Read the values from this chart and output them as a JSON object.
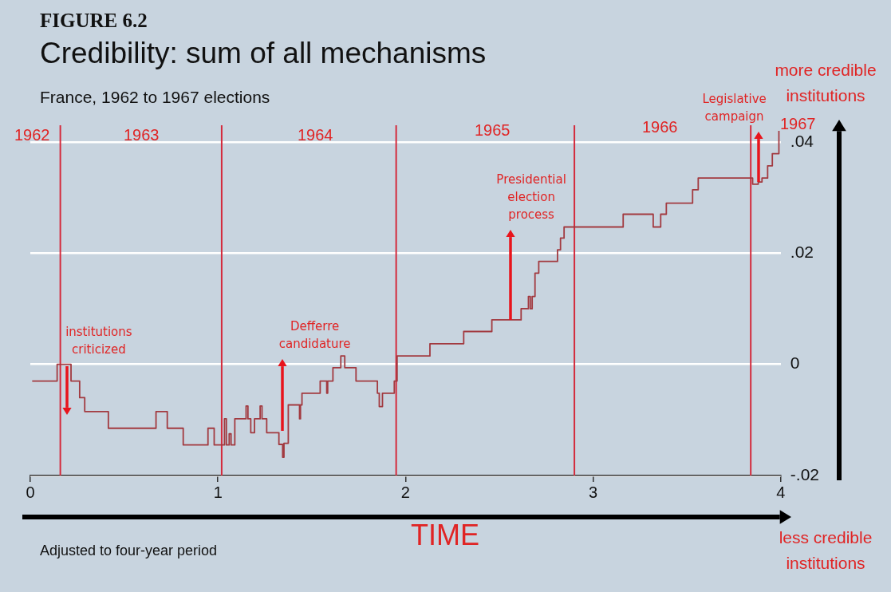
{
  "chart_data": {
    "type": "step",
    "title": "Credibility: sum of all mechanisms",
    "subtitle": "France, 1962 to 1967 elections",
    "xlabel": "TIME",
    "x": [
      0.01,
      0.143,
      0.217,
      0.263,
      0.29,
      0.416,
      0.67,
      0.73,
      0.815,
      0.947,
      0.98,
      1.035,
      1.045,
      1.06,
      1.07,
      1.09,
      1.15,
      1.16,
      1.175,
      1.195,
      1.225,
      1.235,
      1.26,
      1.325,
      1.345,
      1.352,
      1.375,
      1.435,
      1.44,
      1.448,
      1.545,
      1.58,
      1.585,
      1.613,
      1.655,
      1.676,
      1.736,
      1.85,
      1.86,
      1.877,
      1.94,
      1.955,
      2.13,
      2.31,
      2.46,
      2.616,
      2.655,
      2.665,
      2.675,
      2.69,
      2.71,
      2.81,
      2.826,
      2.845,
      3.16,
      3.32,
      3.36,
      3.39,
      3.53,
      3.56,
      3.85,
      3.88,
      3.9,
      3.93,
      3.955,
      3.99
    ],
    "series": [
      {
        "color": "#a23a40",
        "values": [
          -0.003,
          0,
          -0.003,
          -0.006,
          -0.0085,
          -0.0115,
          -0.0085,
          -0.0115,
          -0.0145,
          -0.0115,
          -0.0145,
          -0.0098,
          -0.0145,
          -0.0125,
          -0.0145,
          -0.0098,
          -0.0075,
          -0.0098,
          -0.0123,
          -0.0098,
          -0.0075,
          -0.0098,
          -0.0123,
          -0.0144,
          -0.0167,
          -0.0142,
          -0.0073,
          -0.0098,
          -0.0073,
          -0.0052,
          -0.003,
          -0.0052,
          -0.003,
          -0.0006,
          0.0015,
          -0.0006,
          -0.003,
          -0.0052,
          -0.0076,
          -0.0052,
          -0.003,
          0.0015,
          0.0037,
          0.0059,
          0.008,
          0.01,
          0.0122,
          0.01,
          0.0122,
          0.0164,
          0.0185,
          0.0206,
          0.0227,
          0.0247,
          0.027,
          0.0247,
          0.027,
          0.029,
          0.0314,
          0.0335,
          0.0324,
          0.0328,
          0.0335,
          0.0357,
          0.0379,
          0.042
        ]
      }
    ],
    "xlim": [
      0,
      4
    ],
    "xticks": [
      0,
      1,
      2,
      3,
      4
    ],
    "ylim": [
      -0.02,
      0.043
    ],
    "yticks": [
      {
        "value": -0.02,
        "label": "-.02"
      },
      {
        "value": 0,
        "label": "0"
      },
      {
        "value": 0.02,
        "label": ".02"
      },
      {
        "value": 0.04,
        "label": ".04"
      }
    ],
    "grid": "y",
    "legend": false,
    "ref_lines": [
      {
        "axis": "x",
        "value": 0.16,
        "color": "#d42a3c"
      },
      {
        "axis": "x",
        "value": 1.02,
        "color": "#d42a3c"
      },
      {
        "axis": "x",
        "value": 1.95,
        "color": "#d42a3c"
      },
      {
        "axis": "x",
        "value": 2.9,
        "color": "#d42a3c"
      },
      {
        "axis": "x",
        "value": 3.84,
        "color": "#d42a3c"
      }
    ],
    "annotations": [
      "FIGURE 6.2",
      "Adjusted to four-year period",
      "more credible institutions",
      "less credible institutions",
      "1962",
      "1963",
      "1964",
      "1965",
      "1966",
      "1967",
      {
        "text": "institutions criticized",
        "x": 0.195,
        "y": 0
      },
      {
        "text": "Defferre candidature",
        "x": 1.342,
        "y": -0.012
      },
      {
        "text": "Presidential election process",
        "x": 2.56,
        "y": 0.008
      },
      {
        "text": "Legislative campaign",
        "x": 3.88,
        "y": 0.0328
      }
    ]
  }
}
